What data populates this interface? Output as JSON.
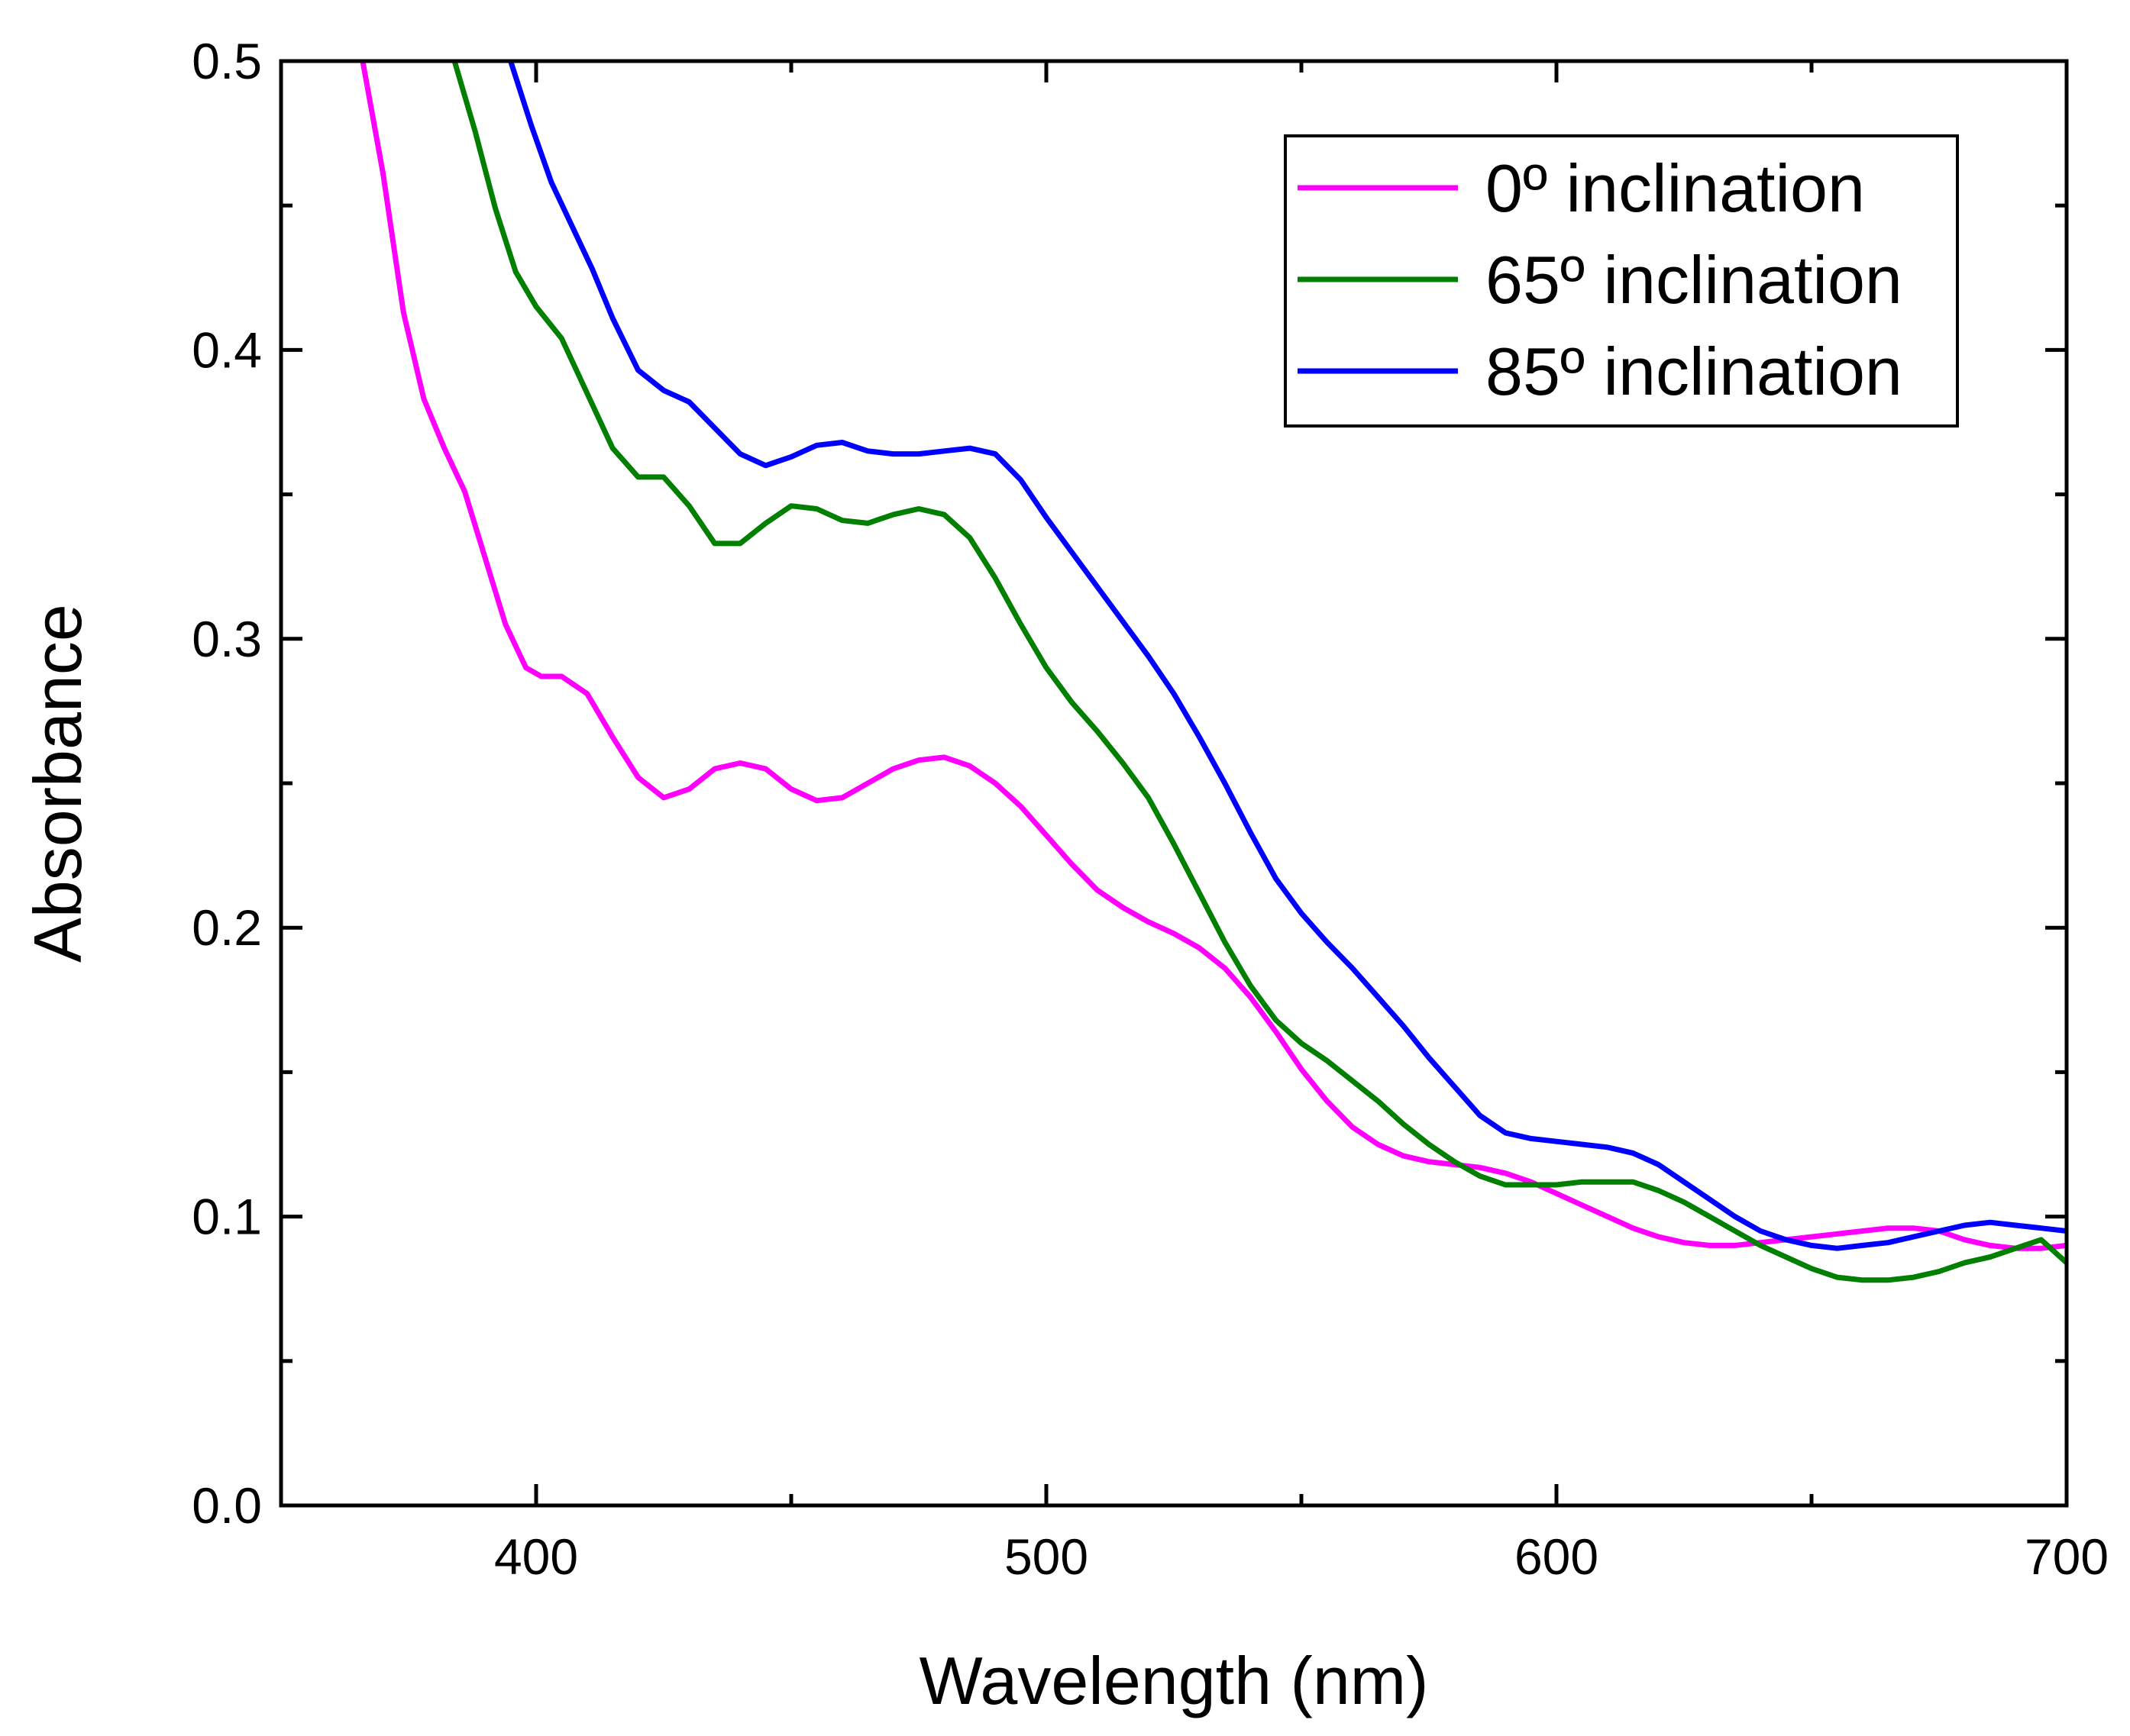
{
  "chart_data": {
    "type": "line",
    "title": "",
    "xlabel": "Wavelength (nm)",
    "ylabel": "Absorbance",
    "xlim": [
      350,
      700
    ],
    "ylim": [
      0.0,
      0.5
    ],
    "xticks": [
      400,
      500,
      600,
      700
    ],
    "xtick_labels": [
      "400",
      "500",
      "600",
      "700"
    ],
    "xminor": [
      350,
      450,
      550,
      650
    ],
    "yticks": [
      0.0,
      0.1,
      0.2,
      0.3,
      0.4,
      0.5
    ],
    "ytick_labels": [
      "0.0",
      "0.1",
      "0.2",
      "0.3",
      "0.4",
      "0.5"
    ],
    "yminor": [
      0.05,
      0.15,
      0.25,
      0.35,
      0.45
    ],
    "grid": false,
    "legend_position": "top-right",
    "series": [
      {
        "name": "0º inclination",
        "color": "#ff00ff",
        "x": [
          366,
          370,
          374,
          378,
          382,
          386,
          390,
          394,
          398,
          401,
          405,
          410,
          415,
          420,
          425,
          430,
          435,
          440,
          445,
          450,
          455,
          460,
          465,
          470,
          475,
          480,
          485,
          490,
          495,
          500,
          505,
          510,
          515,
          520,
          525,
          530,
          535,
          540,
          545,
          550,
          555,
          560,
          565,
          570,
          575,
          580,
          585,
          590,
          595,
          600,
          605,
          610,
          615,
          620,
          625,
          630,
          635,
          640,
          645,
          650,
          655,
          660,
          665,
          670,
          675,
          680,
          685,
          690,
          695,
          700
        ],
        "y": [
          0.5,
          0.461,
          0.413,
          0.383,
          0.366,
          0.351,
          0.328,
          0.305,
          0.29,
          0.287,
          0.287,
          0.281,
          0.266,
          0.252,
          0.245,
          0.248,
          0.255,
          0.257,
          0.255,
          0.248,
          0.244,
          0.245,
          0.25,
          0.255,
          0.258,
          0.259,
          0.256,
          0.25,
          0.242,
          0.232,
          0.222,
          0.213,
          0.207,
          0.202,
          0.198,
          0.193,
          0.186,
          0.176,
          0.164,
          0.151,
          0.14,
          0.131,
          0.125,
          0.121,
          0.119,
          0.118,
          0.117,
          0.115,
          0.112,
          0.108,
          0.104,
          0.1,
          0.096,
          0.093,
          0.091,
          0.09,
          0.09,
          0.091,
          0.092,
          0.093,
          0.094,
          0.095,
          0.096,
          0.096,
          0.095,
          0.092,
          0.09,
          0.089,
          0.089,
          0.09
        ]
      },
      {
        "name": "65º inclination",
        "color": "#007f00",
        "x": [
          384,
          388,
          392,
          396,
          400,
          405,
          410,
          415,
          420,
          425,
          430,
          435,
          440,
          445,
          450,
          455,
          460,
          465,
          470,
          475,
          480,
          485,
          490,
          495,
          500,
          505,
          510,
          515,
          520,
          525,
          530,
          535,
          540,
          545,
          550,
          555,
          560,
          565,
          570,
          575,
          580,
          585,
          590,
          595,
          600,
          605,
          610,
          615,
          620,
          625,
          630,
          635,
          640,
          645,
          650,
          655,
          660,
          665,
          670,
          675,
          680,
          685,
          690,
          695,
          700
        ],
        "y": [
          0.5,
          0.476,
          0.449,
          0.427,
          0.415,
          0.404,
          0.385,
          0.366,
          0.356,
          0.356,
          0.346,
          0.333,
          0.333,
          0.34,
          0.346,
          0.345,
          0.341,
          0.34,
          0.343,
          0.345,
          0.343,
          0.335,
          0.321,
          0.305,
          0.29,
          0.278,
          0.268,
          0.257,
          0.245,
          0.229,
          0.212,
          0.195,
          0.18,
          0.168,
          0.16,
          0.154,
          0.147,
          0.14,
          0.132,
          0.125,
          0.119,
          0.114,
          0.111,
          0.111,
          0.111,
          0.112,
          0.112,
          0.112,
          0.109,
          0.105,
          0.1,
          0.095,
          0.09,
          0.086,
          0.082,
          0.079,
          0.078,
          0.078,
          0.079,
          0.081,
          0.084,
          0.086,
          0.089,
          0.092,
          0.084
        ]
      },
      {
        "name": "85º inclination",
        "color": "#0000ff",
        "x": [
          395,
          399,
          403,
          407,
          411,
          415,
          420,
          425,
          430,
          435,
          440,
          445,
          450,
          455,
          460,
          465,
          470,
          475,
          480,
          485,
          490,
          495,
          500,
          505,
          510,
          515,
          520,
          525,
          530,
          535,
          540,
          545,
          550,
          555,
          560,
          565,
          570,
          575,
          580,
          585,
          590,
          595,
          600,
          605,
          610,
          615,
          620,
          625,
          630,
          635,
          640,
          645,
          650,
          655,
          660,
          665,
          670,
          675,
          680,
          685,
          690,
          695,
          700
        ],
        "y": [
          0.5,
          0.478,
          0.458,
          0.443,
          0.428,
          0.411,
          0.393,
          0.386,
          0.382,
          0.373,
          0.364,
          0.36,
          0.363,
          0.367,
          0.368,
          0.365,
          0.364,
          0.364,
          0.365,
          0.366,
          0.364,
          0.355,
          0.342,
          0.33,
          0.318,
          0.306,
          0.294,
          0.281,
          0.266,
          0.25,
          0.233,
          0.217,
          0.205,
          0.195,
          0.186,
          0.176,
          0.166,
          0.155,
          0.145,
          0.135,
          0.129,
          0.127,
          0.126,
          0.125,
          0.124,
          0.122,
          0.118,
          0.112,
          0.106,
          0.1,
          0.095,
          0.092,
          0.09,
          0.089,
          0.09,
          0.091,
          0.093,
          0.095,
          0.097,
          0.098,
          0.097,
          0.096,
          0.095
        ]
      }
    ]
  }
}
